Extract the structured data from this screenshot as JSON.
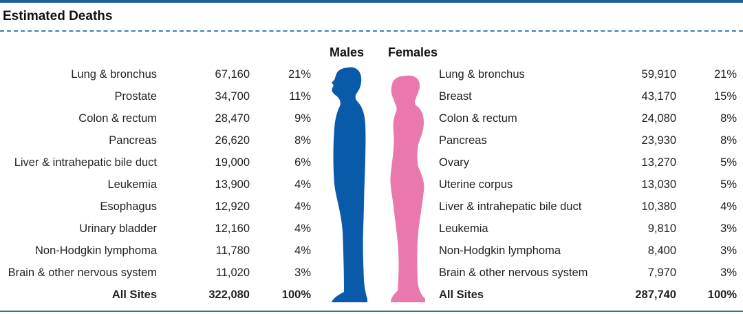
{
  "title": "Estimated Deaths",
  "headers": {
    "males": "Males",
    "females": "Females"
  },
  "colors": {
    "male": "#0a5aaa",
    "female": "#e978ac",
    "rule": "#1f5f9a"
  },
  "males": [
    {
      "site": "Lung & bronchus",
      "deaths": "67,160",
      "pct": "21%"
    },
    {
      "site": "Prostate",
      "deaths": "34,700",
      "pct": "11%"
    },
    {
      "site": "Colon & rectum",
      "deaths": "28,470",
      "pct": "9%"
    },
    {
      "site": "Pancreas",
      "deaths": "26,620",
      "pct": "8%"
    },
    {
      "site": "Liver & intrahepatic bile duct",
      "deaths": "19,000",
      "pct": "6%"
    },
    {
      "site": "Leukemia",
      "deaths": "13,900",
      "pct": "4%"
    },
    {
      "site": "Esophagus",
      "deaths": "12,920",
      "pct": "4%"
    },
    {
      "site": "Urinary bladder",
      "deaths": "12,160",
      "pct": "4%"
    },
    {
      "site": "Non-Hodgkin lymphoma",
      "deaths": "11,780",
      "pct": "4%"
    },
    {
      "site": "Brain & other nervous system",
      "deaths": "11,020",
      "pct": "3%"
    },
    {
      "site": "All Sites",
      "deaths": "322,080",
      "pct": "100%"
    }
  ],
  "females": [
    {
      "site": "Lung & bronchus",
      "deaths": "59,910",
      "pct": "21%"
    },
    {
      "site": "Breast",
      "deaths": "43,170",
      "pct": "15%"
    },
    {
      "site": "Colon & rectum",
      "deaths": "24,080",
      "pct": "8%"
    },
    {
      "site": "Pancreas",
      "deaths": "23,930",
      "pct": "8%"
    },
    {
      "site": "Ovary",
      "deaths": "13,270",
      "pct": "5%"
    },
    {
      "site": "Uterine corpus",
      "deaths": "13,030",
      "pct": "5%"
    },
    {
      "site": "Liver & intrahepatic bile duct",
      "deaths": "10,380",
      "pct": "4%"
    },
    {
      "site": "Leukemia",
      "deaths": "9,810",
      "pct": "3%"
    },
    {
      "site": "Non-Hodgkin lymphoma",
      "deaths": "8,400",
      "pct": "3%"
    },
    {
      "site": "Brain & other nervous system",
      "deaths": "7,970",
      "pct": "3%"
    },
    {
      "site": "All Sites",
      "deaths": "287,740",
      "pct": "100%"
    }
  ]
}
